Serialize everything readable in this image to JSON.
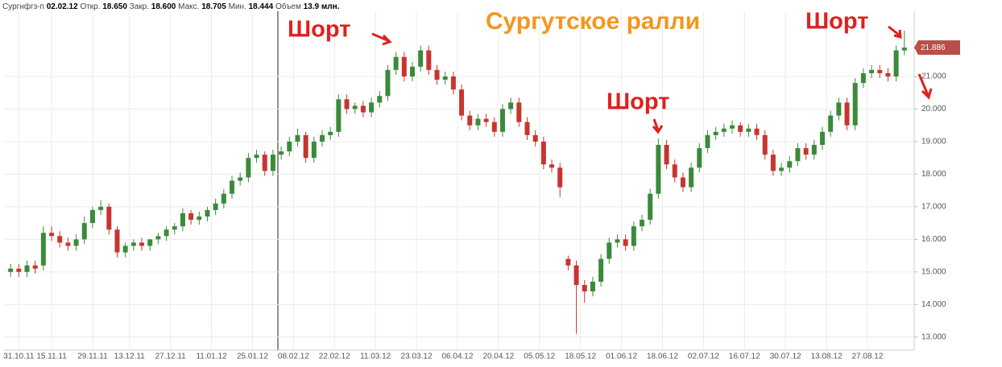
{
  "chart_data": {
    "type": "candlestick",
    "title": "Сургутское ралли",
    "info": {
      "ticker": "Сургнфгз-п",
      "date": "02.02.12",
      "fields": [
        {
          "name": "Откр.",
          "text": "18.650"
        },
        {
          "name": "Закр.",
          "text": "18.600"
        },
        {
          "name": "Макс.",
          "text": "18.705"
        },
        {
          "name": "Мин.",
          "text": "18.444"
        },
        {
          "name": "Объем",
          "text": "13.9 млн."
        }
      ]
    },
    "annotations": [
      "Шорт",
      "Шорт",
      "Шорт"
    ],
    "up_color": "#3b8a3b",
    "down_color": "#c7352f",
    "grid": true,
    "xlim": [
      -0.8,
      110.2
    ],
    "xticks": [
      {
        "value": 1,
        "label": "31.10.11"
      },
      {
        "value": 5,
        "label": "15.11.11"
      },
      {
        "value": 10,
        "label": "29.11.11"
      },
      {
        "value": 14.5,
        "label": "13.12.11"
      },
      {
        "value": 19.5,
        "label": "27.12.11"
      },
      {
        "value": 24.5,
        "label": "11.01.12"
      },
      {
        "value": 29.5,
        "label": "25.01.12"
      },
      {
        "value": 34.5,
        "label": "08.02.12"
      },
      {
        "value": 39.5,
        "label": "22.02.12"
      },
      {
        "value": 44.5,
        "label": "11.03.12"
      },
      {
        "value": 49.5,
        "label": "23.03.12"
      },
      {
        "value": 54.5,
        "label": "06.04.12"
      },
      {
        "value": 59.5,
        "label": "20.04.12"
      },
      {
        "value": 64.5,
        "label": "05.05.12"
      },
      {
        "value": 69.5,
        "label": "18.05.12"
      },
      {
        "value": 74.5,
        "label": "01.06.12"
      },
      {
        "value": 79.5,
        "label": "18.06.12"
      },
      {
        "value": 84.5,
        "label": "02.07.12"
      },
      {
        "value": 89.5,
        "label": "16.07.12"
      },
      {
        "value": 94.5,
        "label": "30.07.12"
      },
      {
        "value": 99.5,
        "label": "13.08.12"
      },
      {
        "value": 104.5,
        "label": "27.08.12"
      }
    ],
    "ylim": [
      12.6,
      23.1
    ],
    "yticks": [
      {
        "value": 13,
        "label": "13.000"
      },
      {
        "value": 14,
        "label": "14.000"
      },
      {
        "value": 15,
        "label": "15.000"
      },
      {
        "value": 16,
        "label": "16.000"
      },
      {
        "value": 17,
        "label": "17.000"
      },
      {
        "value": 18,
        "label": "18.000"
      },
      {
        "value": 19,
        "label": "19.000"
      },
      {
        "value": 20,
        "label": "20.000"
      },
      {
        "value": 21,
        "label": "21.000"
      }
    ],
    "open": [
      15.0,
      15.1,
      15.0,
      15.2,
      15.2,
      16.2,
      16.1,
      15.9,
      15.8,
      16.0,
      16.5,
      16.9,
      17.0,
      16.3,
      15.6,
      15.8,
      15.9,
      15.8,
      16.0,
      16.1,
      16.3,
      16.4,
      16.8,
      16.6,
      16.7,
      16.9,
      17.1,
      17.4,
      17.8,
      17.9,
      18.5,
      18.6,
      18.1,
      18.6,
      18.7,
      19.0,
      19.2,
      18.5,
      19.0,
      19.2,
      19.3,
      20.3,
      20.0,
      20.1,
      19.9,
      20.2,
      20.4,
      21.2,
      21.6,
      21.0,
      21.3,
      21.8,
      21.2,
      20.9,
      21.0,
      20.6,
      19.8,
      19.5,
      19.7,
      19.6,
      19.3,
      20.0,
      20.2,
      19.6,
      19.2,
      19.0,
      18.3,
      18.2,
      15.4,
      15.2,
      14.6,
      14.4,
      14.7,
      15.4,
      15.9,
      16.0,
      15.8,
      16.4,
      16.6,
      17.4,
      18.9,
      18.3,
      17.9,
      17.6,
      18.2,
      18.8,
      19.2,
      19.3,
      19.4,
      19.5,
      19.3,
      19.4,
      19.2,
      18.6,
      18.1,
      18.2,
      18.4,
      18.8,
      18.6,
      18.9,
      19.3,
      19.8,
      20.2,
      19.5,
      20.8,
      21.1,
      21.2,
      21.1,
      21.0,
      21.8
    ],
    "high": [
      15.25,
      15.25,
      15.35,
      15.35,
      16.4,
      16.4,
      16.25,
      16.05,
      16.15,
      16.7,
      17.0,
      17.2,
      17.1,
      16.4,
      15.9,
      16.0,
      16.05,
      16.0,
      16.2,
      16.4,
      16.5,
      16.95,
      16.9,
      16.85,
      17.0,
      17.25,
      17.55,
      17.95,
      18.05,
      18.65,
      18.75,
      18.7,
      18.75,
      18.85,
      19.15,
      19.4,
      19.3,
      19.15,
      19.35,
      19.45,
      20.45,
      20.45,
      20.2,
      20.25,
      20.35,
      20.55,
      21.35,
      21.75,
      21.75,
      21.45,
      21.95,
      21.95,
      21.35,
      21.15,
      21.15,
      20.75,
      19.95,
      19.85,
      19.85,
      19.75,
      20.15,
      20.35,
      20.35,
      19.75,
      19.35,
      19.15,
      18.45,
      18.35,
      15.5,
      15.35,
      14.75,
      14.85,
      15.55,
      16.05,
      16.15,
      16.15,
      16.55,
      16.75,
      17.55,
      19.1,
      19.05,
      18.45,
      18.05,
      18.35,
      18.95,
      19.35,
      19.45,
      19.55,
      19.65,
      19.6,
      19.55,
      19.55,
      19.35,
      18.75,
      18.35,
      18.55,
      18.95,
      18.95,
      19.05,
      19.45,
      19.95,
      20.35,
      20.35,
      20.95,
      21.25,
      21.35,
      21.35,
      21.25,
      21.95,
      22.4
    ],
    "low": [
      14.85,
      14.85,
      14.85,
      14.95,
      15.05,
      15.95,
      15.75,
      15.65,
      15.65,
      15.85,
      16.35,
      16.75,
      16.15,
      15.45,
      15.45,
      15.65,
      15.65,
      15.65,
      15.85,
      15.95,
      16.15,
      16.25,
      16.45,
      16.45,
      16.55,
      16.75,
      16.95,
      17.25,
      17.65,
      17.75,
      18.35,
      17.95,
      17.95,
      18.45,
      18.55,
      18.85,
      18.35,
      18.35,
      18.85,
      19.05,
      19.15,
      19.85,
      19.85,
      19.75,
      19.75,
      20.05,
      20.25,
      21.05,
      20.85,
      20.85,
      21.15,
      21.05,
      20.75,
      20.75,
      20.45,
      19.65,
      19.35,
      19.35,
      19.45,
      19.15,
      19.15,
      19.85,
      19.45,
      19.05,
      18.85,
      18.15,
      18.05,
      17.3,
      15.05,
      13.1,
      14.05,
      14.25,
      14.55,
      15.25,
      15.75,
      15.65,
      15.65,
      16.25,
      16.45,
      17.25,
      18.15,
      17.75,
      17.45,
      17.45,
      18.05,
      18.65,
      19.05,
      19.15,
      19.25,
      19.15,
      19.15,
      19.05,
      18.45,
      17.95,
      17.95,
      18.05,
      18.25,
      18.45,
      18.45,
      18.75,
      19.15,
      19.65,
      19.35,
      19.35,
      20.65,
      20.95,
      20.95,
      20.85,
      20.85,
      21.65
    ],
    "close": [
      15.1,
      15.0,
      15.2,
      15.1,
      16.2,
      16.1,
      15.9,
      15.8,
      16.0,
      16.5,
      16.9,
      17.0,
      16.3,
      15.6,
      15.8,
      15.9,
      15.8,
      16.0,
      16.1,
      16.3,
      16.4,
      16.8,
      16.6,
      16.7,
      16.9,
      17.1,
      17.4,
      17.8,
      17.9,
      18.5,
      18.6,
      18.1,
      18.6,
      18.7,
      19.0,
      19.2,
      18.5,
      19.0,
      19.2,
      19.3,
      20.3,
      20.0,
      20.1,
      19.9,
      20.2,
      20.4,
      21.2,
      21.6,
      21.0,
      21.3,
      21.8,
      21.2,
      20.9,
      21.0,
      20.6,
      19.8,
      19.5,
      19.7,
      19.6,
      19.3,
      20.0,
      20.2,
      19.6,
      19.2,
      19.0,
      18.3,
      18.2,
      17.6,
      15.2,
      14.6,
      14.4,
      14.7,
      15.4,
      15.9,
      16.0,
      15.8,
      16.4,
      16.6,
      17.4,
      18.9,
      18.3,
      17.9,
      17.6,
      18.2,
      18.8,
      19.2,
      19.3,
      19.4,
      19.5,
      19.3,
      19.4,
      19.2,
      18.6,
      18.1,
      18.2,
      18.4,
      18.8,
      18.6,
      18.9,
      19.3,
      19.8,
      20.2,
      19.5,
      20.8,
      21.1,
      21.2,
      21.1,
      21.0,
      21.8,
      21.886
    ]
  }
}
